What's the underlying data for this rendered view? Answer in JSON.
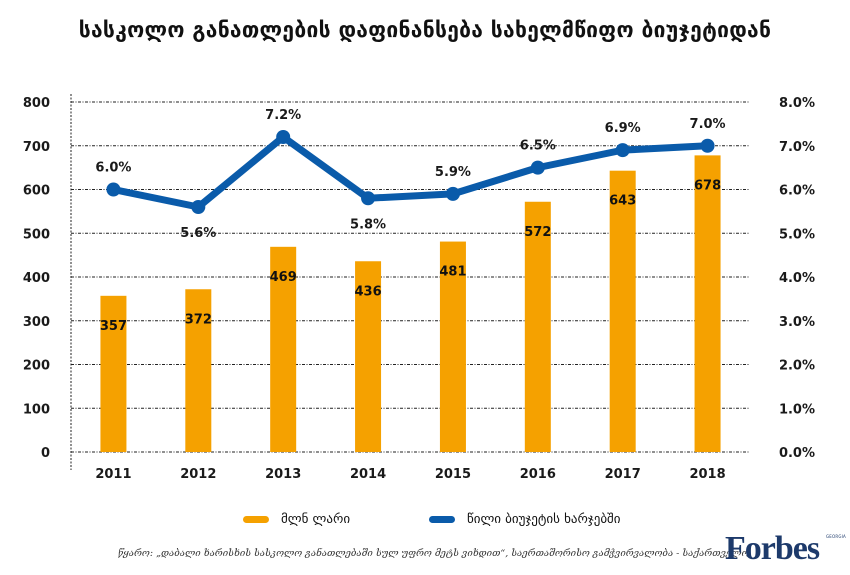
{
  "title": "სასკოლო განათლების დაფინანსება სახელმწიფო ბიუჯეტიდან",
  "chart_data": {
    "type": "bar+line",
    "title": "სასკოლო განათლების დაფინანსება სახელმწიფო ბიუჯეტიდან",
    "categories": [
      "2011",
      "2012",
      "2013",
      "2014",
      "2015",
      "2016",
      "2017",
      "2018"
    ],
    "series": [
      {
        "name": "მლნ ლარი",
        "type": "bar",
        "axis": "left",
        "color": "#F5A100",
        "values": [
          357,
          372,
          469,
          436,
          481,
          572,
          643,
          678
        ],
        "labels": [
          "357",
          "372",
          "469",
          "436",
          "481",
          "572",
          "643",
          "678"
        ]
      },
      {
        "name": "წილი ბიუჯეტის ხარჯებში",
        "type": "line",
        "axis": "right",
        "color": "#0A5BAA",
        "values": [
          6.0,
          5.6,
          7.2,
          5.8,
          5.9,
          6.5,
          6.9,
          7.0
        ],
        "labels": [
          "6.0%",
          "5.6%",
          "7.2%",
          "5.8%",
          "5.9%",
          "6.5%",
          "6.9%",
          "7.0%"
        ]
      }
    ],
    "y_left": {
      "min": 0,
      "max": 800,
      "ticks": [
        "0",
        "100",
        "200",
        "300",
        "400",
        "500",
        "600",
        "700",
        "800"
      ]
    },
    "y_right": {
      "min": 0,
      "max": 8,
      "ticks": [
        "0.0%",
        "1.0%",
        "2.0%",
        "3.0%",
        "4.0%",
        "5.0%",
        "6.0%",
        "7.0%",
        "8.0%"
      ]
    },
    "xlabel": "",
    "ylabel": "",
    "grid": true,
    "legend_position": "bottom"
  },
  "legend": [
    {
      "label": "მლნ ლარი",
      "color": "#F5A100"
    },
    {
      "label": "წილი ბიუჯეტის ხარჯებში",
      "color": "#0A5BAA"
    }
  ],
  "source": "წყარო: „დაბალი ხარისხის სასკოლო განათლებაში სულ უფრო მეტს ვიხდით“, საერთაშორისო გამჭვირვალობა - საქართველო",
  "brand": {
    "name": "Forbes",
    "sub": "GEORGIA"
  }
}
